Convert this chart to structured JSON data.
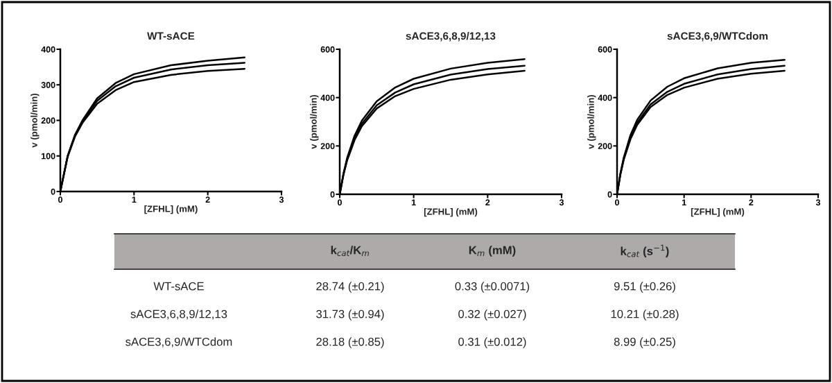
{
  "chart_data": [
    {
      "type": "line",
      "title": "WT-sACE",
      "xlabel": "[ZFHL] (mM)",
      "ylabel": "v (pmol/min)",
      "xlim": [
        0,
        3
      ],
      "xticks": [
        0,
        1,
        2,
        3
      ],
      "ylim": [
        0,
        400
      ],
      "yticks": [
        0,
        100,
        200,
        300,
        400
      ],
      "grid": false,
      "legend": false,
      "x": [
        0,
        0.05,
        0.1,
        0.2,
        0.3,
        0.5,
        0.75,
        1,
        1.5,
        2,
        2.5
      ],
      "series": [
        {
          "color": "#000000",
          "values": [
            0,
            50,
            100,
            160,
            200,
            262,
            305,
            330,
            355,
            368,
            377
          ]
        },
        {
          "color": "#000000",
          "values": [
            0,
            50,
            100,
            158,
            197,
            255,
            296,
            320,
            343,
            355,
            362
          ]
        },
        {
          "color": "#000000",
          "values": [
            0,
            50,
            98,
            155,
            193,
            247,
            285,
            308,
            328,
            339,
            345
          ]
        }
      ]
    },
    {
      "type": "line",
      "title": "sACE3,6,8,9/12,13",
      "xlabel": "[ZFHL] (mM)",
      "ylabel": "v (pmol/min)",
      "xlim": [
        0,
        3
      ],
      "xticks": [
        0,
        1,
        2,
        3
      ],
      "ylim": [
        0,
        600
      ],
      "yticks": [
        0,
        200,
        400,
        600
      ],
      "grid": false,
      "legend": false,
      "x": [
        0,
        0.05,
        0.1,
        0.2,
        0.3,
        0.5,
        0.75,
        1,
        1.5,
        2,
        2.5
      ],
      "series": [
        {
          "color": "#000000",
          "values": [
            0,
            85,
            150,
            242,
            305,
            385,
            442,
            478,
            520,
            544,
            559
          ]
        },
        {
          "color": "#000000",
          "values": [
            0,
            82,
            145,
            232,
            292,
            368,
            421,
            455,
            495,
            518,
            532
          ]
        },
        {
          "color": "#000000",
          "values": [
            0,
            80,
            140,
            224,
            282,
            355,
            406,
            436,
            474,
            496,
            511
          ]
        }
      ]
    },
    {
      "type": "line",
      "title": "sACE3,6,9/WTCdom",
      "xlabel": "[ZFHL] (mM)",
      "ylabel": "v (pmol/min)",
      "xlim": [
        0,
        3
      ],
      "xticks": [
        0,
        1,
        2,
        3
      ],
      "ylim": [
        0,
        600
      ],
      "yticks": [
        0,
        200,
        400,
        600
      ],
      "grid": false,
      "legend": false,
      "x": [
        0,
        0.05,
        0.1,
        0.2,
        0.3,
        0.5,
        0.75,
        1,
        1.5,
        2,
        2.5
      ],
      "series": [
        {
          "color": "#000000",
          "values": [
            0,
            87,
            152,
            245,
            308,
            388,
            445,
            480,
            521,
            544,
            556
          ]
        },
        {
          "color": "#000000",
          "values": [
            0,
            84,
            147,
            235,
            296,
            372,
            424,
            457,
            496,
            518,
            532
          ]
        },
        {
          "color": "#000000",
          "values": [
            0,
            82,
            143,
            228,
            287,
            361,
            411,
            441,
            478,
            499,
            511
          ]
        }
      ]
    },
    {
      "type": "other",
      "annotations": [
        "k$_{cat}$/K$_{m}$",
        "K$_{m}$ (mM)",
        "k$_{cat}$ (s$^{−1}$)",
        "WT-sACE",
        "28.74 (±0.21)",
        "0.33 (±0.0071)",
        "9.51 (±0.26)",
        "sACE3,6,8,9/12,13",
        "31.73 (±0.94)",
        "0.32 (±0.027)",
        "10.21 (±0.28)",
        "sACE3,6,9/WTCdom",
        "28.18 (±0.85)",
        "0.31 (±0.012)",
        "8.99 (±0.25)"
      ]
    }
  ]
}
